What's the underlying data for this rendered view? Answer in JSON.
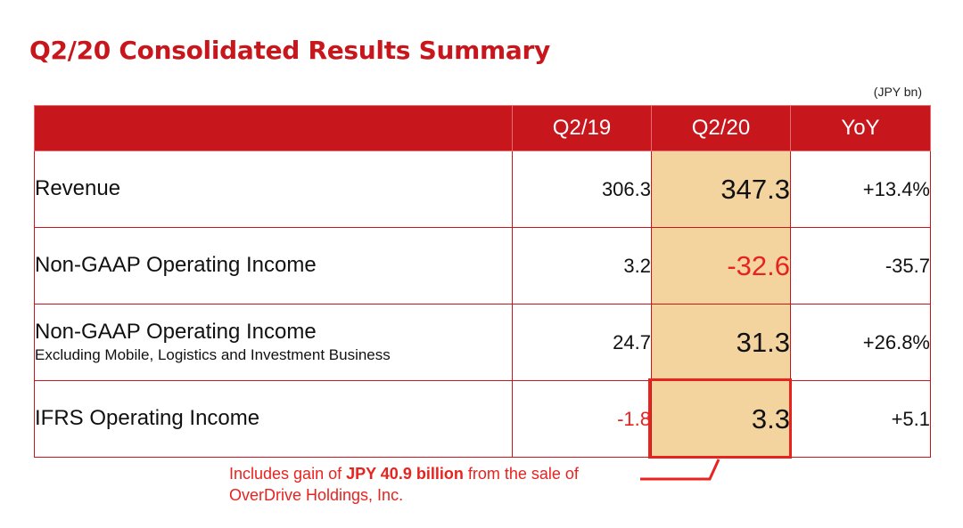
{
  "title": "Q2/20 Consolidated Results Summary",
  "unit": "(JPY bn)",
  "columns": [
    "",
    "Q2/19",
    "Q2/20",
    "YoY"
  ],
  "rows": [
    {
      "label": "Revenue",
      "sub": "",
      "q219": "306.3",
      "q220": "347.3",
      "yoy": "+13.4%"
    },
    {
      "label": "Non-GAAP Operating Income",
      "sub": "",
      "q219": "3.2",
      "q220": "-32.6",
      "yoy": "-35.7"
    },
    {
      "label": "Non-GAAP Operating Income",
      "sub": "Excluding Mobile, Logistics and Investment Business",
      "q219": "24.7",
      "q220": "31.3",
      "yoy": "+26.8%"
    },
    {
      "label": "IFRS Operating Income",
      "sub": "",
      "q219": "-1.8",
      "q220": "3.3",
      "yoy": "+5.1"
    }
  ],
  "note": {
    "pre": "Includes gain of ",
    "bold": "JPY 40.9 billion",
    "post": " from the sale of",
    "line2": "OverDrive Holdings, Inc."
  },
  "colors": {
    "accent": "#c8161d",
    "highlight": "#f4d49e",
    "negative": "#e8231f"
  }
}
